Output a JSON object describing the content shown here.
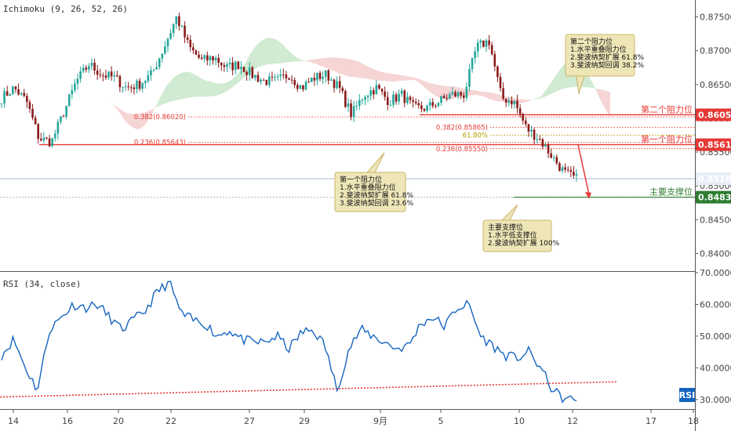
{
  "price_panel": {
    "indicator_label": "Ichimoku (9, 26, 52, 26)",
    "y_ticks": [
      "0.87500",
      "0.87000",
      "0.86500",
      "0.86000",
      "0.85500",
      "0.85000",
      "0.84500",
      "0.84000"
    ],
    "y_tick_values": [
      0.875,
      0.87,
      0.865,
      0.86,
      0.855,
      0.85,
      0.845,
      0.84
    ],
    "price_tags": [
      {
        "value": "0.86052",
        "color": "#e53935"
      },
      {
        "value": "0.85610",
        "color": "#e53935"
      },
      {
        "value": "0.85106",
        "color": "#e8eef7"
      },
      {
        "value": "0.84833",
        "color": "#2e7d32"
      }
    ],
    "level_labels": [
      {
        "text": "第二个阻力位",
        "color": "#e53935"
      },
      {
        "text": "第一个阻力位",
        "color": "#e53935"
      },
      {
        "text": "主要支撑位",
        "color": "#2e7d32"
      }
    ],
    "fib_labels": [
      {
        "text": "0.382(0.86020)",
        "color": "#e53935"
      },
      {
        "text": "0.236(0.85643)",
        "color": "#e53935"
      },
      {
        "text": "0.382(0.85865)",
        "color": "#e53935"
      },
      {
        "text": "61.80%",
        "color": "#b8a000"
      },
      {
        "text": "0.236(0.85550)",
        "color": "#e53935"
      }
    ],
    "notes": [
      {
        "lines": [
          "第二个阻力位",
          "1.水平重叠阻力位",
          "2.斐波纳契扩展 61.8%",
          "3.斐波纳契回调 38.2%"
        ]
      },
      {
        "lines": [
          "第一个阻力位",
          "1.水平重叠阻力位",
          "2.斐波纳契扩展 61.8%",
          "3.斐波纳契回调 23.6%"
        ]
      },
      {
        "lines": [
          "主要支撑位",
          "1.水平低支撑位",
          "2.斐波纳契扩展 100%"
        ]
      }
    ]
  },
  "rsi_panel": {
    "indicator_label": "RSI (34, close)",
    "y_ticks": [
      "70.0000",
      "60.0000",
      "50.0000",
      "40.0000",
      "30.0000"
    ],
    "y_tick_values": [
      70,
      60,
      50,
      40,
      30
    ],
    "badge": "RSI"
  },
  "x_axis": {
    "ticks": [
      "14",
      "16",
      "20",
      "22",
      "27",
      "29",
      "9月",
      "5",
      "10",
      "12",
      "17",
      "18"
    ]
  },
  "colors": {
    "bull": "#26a69a",
    "bear": "#8b1a1a",
    "resistance": "#e53935",
    "support": "#2e7d32",
    "rsi_line": "#1565c0",
    "cloud_green": "#c8e6c9",
    "cloud_red": "#f4cccc",
    "note_bg": "#efe6b8",
    "note_border": "#c9b56a"
  },
  "chart_data": {
    "type": "line",
    "price": {
      "x_ticks": [
        "14",
        "16",
        "20",
        "22",
        "27",
        "29",
        "9月",
        "5",
        "10",
        "12",
        "17",
        "18"
      ],
      "ylim": [
        0.8375,
        0.8775
      ],
      "levels": [
        {
          "label": "第二个阻力位",
          "value": 0.86052
        },
        {
          "label": "第一个阻力位",
          "value": 0.8561
        },
        {
          "label": "主要支撑位",
          "value": 0.84833
        }
      ],
      "last_price": 0.85106,
      "close_path": [
        0.863,
        0.8645,
        0.8625,
        0.857,
        0.8565,
        0.861,
        0.8655,
        0.868,
        0.8665,
        0.866,
        0.8645,
        0.865,
        0.8665,
        0.8705,
        0.875,
        0.8705,
        0.8685,
        0.869,
        0.8675,
        0.868,
        0.8665,
        0.8655,
        0.8655,
        0.8665,
        0.8645,
        0.866,
        0.8665,
        0.8645,
        0.8605,
        0.8635,
        0.8645,
        0.8625,
        0.8635,
        0.8615,
        0.8615,
        0.8625,
        0.8635,
        0.8635,
        0.8705,
        0.8715,
        0.863,
        0.8625,
        0.8585,
        0.857,
        0.8545,
        0.852,
        0.851
      ]
    },
    "rsi": {
      "ylim": [
        27,
        70
      ],
      "values": [
        44,
        49,
        40,
        33,
        52,
        56,
        60,
        59,
        60,
        56,
        52,
        55,
        58,
        64,
        67,
        57,
        55,
        54,
        50,
        52,
        49,
        48,
        48,
        50,
        46,
        51,
        52,
        47,
        33,
        46,
        52,
        50,
        48,
        46,
        47,
        54,
        56,
        53,
        59,
        60,
        50,
        47,
        44,
        43,
        45,
        40,
        33,
        30,
        30
      ],
      "trendline": [
        [
          0,
          30.8
        ],
        [
          1,
          35.6
        ]
      ]
    }
  }
}
